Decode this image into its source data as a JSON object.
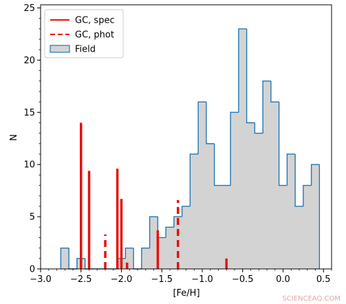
{
  "chart_data": {
    "type": "bar",
    "xlabel": "[Fe/H]",
    "ylabel": "N",
    "xlim": [
      -3.0,
      0.6
    ],
    "ylim": [
      0,
      25.3
    ],
    "xticks": [
      -3.0,
      -2.5,
      -2.0,
      -1.5,
      -1.0,
      -0.5,
      0.0,
      0.5
    ],
    "xtick_labels": [
      "−3.0",
      "−2.5",
      "−2.0",
      "−1.5",
      "−1.0",
      "−0.5",
      "0.0",
      "0.5"
    ],
    "yticks": [
      0,
      5,
      10,
      15,
      20,
      25
    ],
    "ytick_labels": [
      "0",
      "5",
      "10",
      "15",
      "20",
      "25"
    ],
    "legend": {
      "placement": "top-left",
      "entries": [
        {
          "label": "GC, spec",
          "style": "solid-line",
          "color": "#e8100c"
        },
        {
          "label": "GC, phot",
          "style": "dashed-line",
          "color": "#e8100c"
        },
        {
          "label": "Field",
          "style": "patch",
          "color": "#d3d3d3",
          "edge": "#1f77b4"
        }
      ]
    },
    "series": [
      {
        "name": "Field",
        "kind": "step-histogram",
        "bin_width": 0.1,
        "bins": [
          {
            "x0": -2.75,
            "value": 2
          },
          {
            "x0": -2.65,
            "value": 0
          },
          {
            "x0": -2.55,
            "value": 1
          },
          {
            "x0": -2.45,
            "value": 0
          },
          {
            "x0": -2.35,
            "value": 0
          },
          {
            "x0": -2.25,
            "value": 0
          },
          {
            "x0": -2.15,
            "value": 0
          },
          {
            "x0": -2.05,
            "value": 1
          },
          {
            "x0": -1.95,
            "value": 2
          },
          {
            "x0": -1.85,
            "value": 0
          },
          {
            "x0": -1.75,
            "value": 2
          },
          {
            "x0": -1.65,
            "value": 5
          },
          {
            "x0": -1.55,
            "value": 3
          },
          {
            "x0": -1.45,
            "value": 4
          },
          {
            "x0": -1.35,
            "value": 5
          },
          {
            "x0": -1.25,
            "value": 6
          },
          {
            "x0": -1.15,
            "value": 11
          },
          {
            "x0": -1.05,
            "value": 16
          },
          {
            "x0": -0.95,
            "value": 12
          },
          {
            "x0": -0.85,
            "value": 8
          },
          {
            "x0": -0.75,
            "value": 8
          },
          {
            "x0": -0.65,
            "value": 15
          },
          {
            "x0": -0.55,
            "value": 23
          },
          {
            "x0": -0.45,
            "value": 14
          },
          {
            "x0": -0.35,
            "value": 13
          },
          {
            "x0": -0.25,
            "value": 18
          },
          {
            "x0": -0.15,
            "value": 16
          },
          {
            "x0": -0.05,
            "value": 8
          },
          {
            "x0": 0.05,
            "value": 11
          },
          {
            "x0": 0.15,
            "value": 6
          },
          {
            "x0": 0.25,
            "value": 8
          },
          {
            "x0": 0.35,
            "value": 10
          }
        ]
      },
      {
        "name": "GC, spec",
        "kind": "vertical-lines",
        "lines": [
          {
            "x": -2.5,
            "value": 14
          },
          {
            "x": -2.4,
            "value": 9.4
          },
          {
            "x": -2.05,
            "value": 9.6
          },
          {
            "x": -2.0,
            "value": 6.7
          },
          {
            "x": -1.93,
            "value": 0.6
          },
          {
            "x": -1.55,
            "value": 3.7
          },
          {
            "x": -0.7,
            "value": 1.0
          }
        ]
      },
      {
        "name": "GC, phot",
        "kind": "vertical-lines-dashed",
        "lines": [
          {
            "x": -2.2,
            "value": 3.3
          },
          {
            "x": -1.3,
            "value": 6.6
          }
        ]
      }
    ],
    "colors": {
      "gc": "#e8100c",
      "field_fill": "#d3d3d3",
      "field_edge": "#1f77b4"
    }
  },
  "watermark": "SCIENCEAQ.COM"
}
